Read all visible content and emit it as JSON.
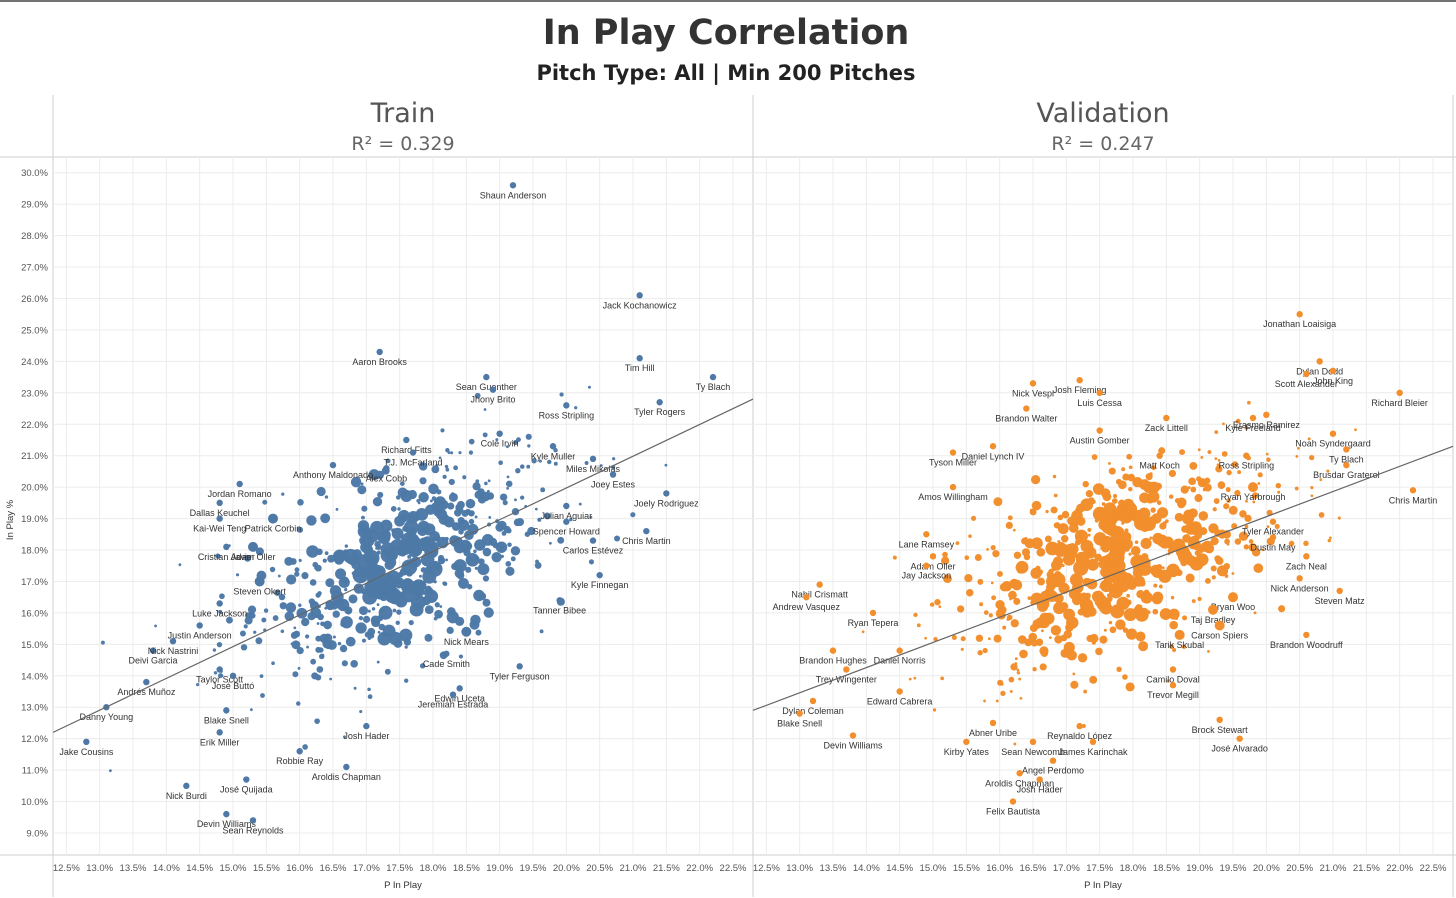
{
  "chart_data": {
    "type": "scatter",
    "title": "In Play Correlation",
    "subtitle": "Pitch Type: All | Min 200 Pitches",
    "xlabel": "P In Play",
    "ylabel": "In Play %",
    "xlim": [
      12.3,
      22.8
    ],
    "ylim": [
      8.3,
      30.5
    ],
    "x_ticks": [
      "12.5%",
      "13.0%",
      "13.5%",
      "14.0%",
      "14.5%",
      "15.0%",
      "15.5%",
      "16.0%",
      "16.5%",
      "17.0%",
      "17.5%",
      "18.0%",
      "18.5%",
      "19.0%",
      "19.5%",
      "20.0%",
      "20.5%",
      "21.0%",
      "21.5%",
      "22.0%",
      "22.5%"
    ],
    "y_ticks": [
      "9.0%",
      "10.0%",
      "11.0%",
      "12.0%",
      "13.0%",
      "14.0%",
      "15.0%",
      "16.0%",
      "17.0%",
      "18.0%",
      "19.0%",
      "20.0%",
      "21.0%",
      "22.0%",
      "23.0%",
      "24.0%",
      "25.0%",
      "26.0%",
      "27.0%",
      "28.0%",
      "29.0%",
      "30.0%"
    ],
    "grid": true,
    "panels": [
      {
        "name": "Train",
        "r2_label": "R² = 0.329",
        "color": "#4e79a7",
        "trend": {
          "x": [
            12.3,
            22.8
          ],
          "y": [
            12.2,
            22.8
          ]
        },
        "labeled_points": [
          {
            "x": 19.2,
            "y": 29.6,
            "label": "Shaun Anderson"
          },
          {
            "x": 21.1,
            "y": 26.1,
            "label": "Jack Kochanowicz"
          },
          {
            "x": 21.1,
            "y": 24.1,
            "label": "Tim Hill"
          },
          {
            "x": 22.2,
            "y": 23.5,
            "label": "Ty Blach"
          },
          {
            "x": 17.2,
            "y": 24.3,
            "label": "Aaron Brooks"
          },
          {
            "x": 18.8,
            "y": 23.5,
            "label": "Sean Guenther"
          },
          {
            "x": 18.9,
            "y": 23.1,
            "label": "Jhony Brito"
          },
          {
            "x": 20.0,
            "y": 22.6,
            "label": "Ross Stripling"
          },
          {
            "x": 21.4,
            "y": 22.7,
            "label": "Tyler Rogers"
          },
          {
            "x": 17.6,
            "y": 21.5,
            "label": "Richard Fitts"
          },
          {
            "x": 17.7,
            "y": 21.1,
            "label": "T.J. McFarland"
          },
          {
            "x": 19.0,
            "y": 21.7,
            "label": "Cole Irvin"
          },
          {
            "x": 19.8,
            "y": 21.3,
            "label": "Kyle Muller"
          },
          {
            "x": 20.4,
            "y": 20.9,
            "label": "Miles Mikolas"
          },
          {
            "x": 16.5,
            "y": 20.7,
            "label": "Anthony Maldonado"
          },
          {
            "x": 17.3,
            "y": 20.6,
            "label": "Alex Cobb"
          },
          {
            "x": 15.1,
            "y": 20.1,
            "label": "Jordan Romano"
          },
          {
            "x": 20.7,
            "y": 20.4,
            "label": "Joey Estes"
          },
          {
            "x": 21.5,
            "y": 19.8,
            "label": "Joely Rodriguez"
          },
          {
            "x": 14.8,
            "y": 19.5,
            "label": "Dallas Keuchel"
          },
          {
            "x": 20.0,
            "y": 19.4,
            "label": "Julian Aguiar"
          },
          {
            "x": 14.8,
            "y": 19.0,
            "label": "Kai-Wei Teng"
          },
          {
            "x": 15.6,
            "y": 19.0,
            "label": "Patrick Corbin"
          },
          {
            "x": 20.0,
            "y": 18.9,
            "label": "Spencer Howard"
          },
          {
            "x": 21.2,
            "y": 18.6,
            "label": "Chris Martin"
          },
          {
            "x": 14.9,
            "y": 18.1,
            "label": "Cristian Javier"
          },
          {
            "x": 15.3,
            "y": 18.1,
            "label": "Adam Oller"
          },
          {
            "x": 20.4,
            "y": 18.3,
            "label": "Carlos Estévez"
          },
          {
            "x": 20.5,
            "y": 17.2,
            "label": "Kyle Finnegan"
          },
          {
            "x": 15.4,
            "y": 17.0,
            "label": "Steven Okert"
          },
          {
            "x": 14.8,
            "y": 16.3,
            "label": "Luke Jackson"
          },
          {
            "x": 19.9,
            "y": 16.4,
            "label": "Tanner Bibee"
          },
          {
            "x": 14.5,
            "y": 15.6,
            "label": "Justin Anderson"
          },
          {
            "x": 18.5,
            "y": 15.4,
            "label": "Nick Mears"
          },
          {
            "x": 13.8,
            "y": 14.8,
            "label": "Deivi Garcia"
          },
          {
            "x": 14.1,
            "y": 15.1,
            "label": "Nick Nastrini"
          },
          {
            "x": 18.2,
            "y": 14.7,
            "label": "Cade Smith"
          },
          {
            "x": 14.8,
            "y": 14.2,
            "label": "Taylor Scott"
          },
          {
            "x": 19.3,
            "y": 14.3,
            "label": "Tyler Ferguson"
          },
          {
            "x": 15.0,
            "y": 14.0,
            "label": "José Buttó"
          },
          {
            "x": 13.7,
            "y": 13.8,
            "label": "Andrés Muñoz"
          },
          {
            "x": 18.4,
            "y": 13.6,
            "label": "Edwin Uceta"
          },
          {
            "x": 18.3,
            "y": 13.4,
            "label": "Jeremiah Estrada"
          },
          {
            "x": 14.9,
            "y": 12.9,
            "label": "Blake Snell"
          },
          {
            "x": 13.1,
            "y": 13.0,
            "label": "Danny Young"
          },
          {
            "x": 14.8,
            "y": 12.2,
            "label": "Erik Miller"
          },
          {
            "x": 17.0,
            "y": 12.4,
            "label": "Josh Hader"
          },
          {
            "x": 16.0,
            "y": 11.6,
            "label": "Robbie Ray"
          },
          {
            "x": 16.7,
            "y": 11.1,
            "label": "Aroldis Chapman"
          },
          {
            "x": 12.8,
            "y": 11.9,
            "label": "Jake Cousins"
          },
          {
            "x": 14.3,
            "y": 10.5,
            "label": "Nick Burdi"
          },
          {
            "x": 15.2,
            "y": 10.7,
            "label": "José Quijada"
          },
          {
            "x": 14.9,
            "y": 9.6,
            "label": "Devin Williams"
          },
          {
            "x": 15.3,
            "y": 9.4,
            "label": "Sean Reynolds"
          }
        ]
      },
      {
        "name": "Validation",
        "r2_label": "R² = 0.247",
        "color": "#f28e2b",
        "trend": {
          "x": [
            12.3,
            22.8
          ],
          "y": [
            12.9,
            21.3
          ]
        },
        "labeled_points": [
          {
            "x": 20.5,
            "y": 25.5,
            "label": "Jonathan Loaisiga"
          },
          {
            "x": 20.8,
            "y": 24.0,
            "label": "Dylan Dodd"
          },
          {
            "x": 21.0,
            "y": 23.7,
            "label": "John King"
          },
          {
            "x": 20.6,
            "y": 23.6,
            "label": "Scott Alexander"
          },
          {
            "x": 22.0,
            "y": 23.0,
            "label": "Richard Bleier"
          },
          {
            "x": 17.2,
            "y": 23.4,
            "label": "Josh Fleming"
          },
          {
            "x": 16.5,
            "y": 23.3,
            "label": "Nick Vespi"
          },
          {
            "x": 17.5,
            "y": 23.0,
            "label": "Luis Cessa"
          },
          {
            "x": 19.8,
            "y": 22.2,
            "label": "Kyle Freeland"
          },
          {
            "x": 20.0,
            "y": 22.3,
            "label": "Erasmo Ramirez"
          },
          {
            "x": 16.4,
            "y": 22.5,
            "label": "Brandon Walter"
          },
          {
            "x": 18.5,
            "y": 22.2,
            "label": "Zack Littell"
          },
          {
            "x": 17.5,
            "y": 21.8,
            "label": "Austin Gomber"
          },
          {
            "x": 21.0,
            "y": 21.7,
            "label": "Noah Syndergaard"
          },
          {
            "x": 15.9,
            "y": 21.3,
            "label": "Daniel Lynch IV"
          },
          {
            "x": 18.4,
            "y": 21.0,
            "label": "Matt Koch"
          },
          {
            "x": 15.3,
            "y": 21.1,
            "label": "Tyson Miller"
          },
          {
            "x": 21.2,
            "y": 21.2,
            "label": "Ty Blach"
          },
          {
            "x": 21.2,
            "y": 20.7,
            "label": "Brusdar Graterol"
          },
          {
            "x": 19.7,
            "y": 21.0,
            "label": "Ross Stripling"
          },
          {
            "x": 19.8,
            "y": 20.0,
            "label": "Ryan Yarbrough"
          },
          {
            "x": 15.3,
            "y": 20.0,
            "label": "Amos Willingham"
          },
          {
            "x": 22.2,
            "y": 19.9,
            "label": "Chris Martin"
          },
          {
            "x": 14.9,
            "y": 18.5,
            "label": "Lane Ramsey"
          },
          {
            "x": 20.1,
            "y": 18.9,
            "label": "Tyler Alexander"
          },
          {
            "x": 20.1,
            "y": 18.4,
            "label": "Dustin May"
          },
          {
            "x": 15.0,
            "y": 17.8,
            "label": "Adam Oller"
          },
          {
            "x": 14.9,
            "y": 17.5,
            "label": "Jay Jackson"
          },
          {
            "x": 20.6,
            "y": 17.8,
            "label": "Zach Neal"
          },
          {
            "x": 13.3,
            "y": 16.9,
            "label": "Nabil Crismatt"
          },
          {
            "x": 20.5,
            "y": 17.1,
            "label": "Nick Anderson"
          },
          {
            "x": 13.1,
            "y": 16.5,
            "label": "Andrew Vasquez"
          },
          {
            "x": 19.5,
            "y": 16.5,
            "label": "Bryan Woo"
          },
          {
            "x": 21.1,
            "y": 16.7,
            "label": "Steven Matz"
          },
          {
            "x": 14.1,
            "y": 16.0,
            "label": "Ryan Tepera"
          },
          {
            "x": 19.2,
            "y": 16.1,
            "label": "Taj Bradley"
          },
          {
            "x": 19.3,
            "y": 15.6,
            "label": "Carson Spiers"
          },
          {
            "x": 18.7,
            "y": 15.3,
            "label": "Tarik Skubal"
          },
          {
            "x": 20.6,
            "y": 15.3,
            "label": "Brandon Woodruff"
          },
          {
            "x": 13.5,
            "y": 14.8,
            "label": "Brandon Hughes"
          },
          {
            "x": 14.5,
            "y": 14.8,
            "label": "Daniel Norris"
          },
          {
            "x": 13.7,
            "y": 14.2,
            "label": "Trey Wingenter"
          },
          {
            "x": 18.6,
            "y": 14.2,
            "label": "Camilo Doval"
          },
          {
            "x": 18.6,
            "y": 13.7,
            "label": "Trevor Megill"
          },
          {
            "x": 14.5,
            "y": 13.5,
            "label": "Edward Cabrera"
          },
          {
            "x": 13.2,
            "y": 13.2,
            "label": "Dylan Coleman"
          },
          {
            "x": 13.0,
            "y": 12.8,
            "label": "Blake Snell"
          },
          {
            "x": 17.2,
            "y": 12.4,
            "label": "Reynaldo López"
          },
          {
            "x": 15.9,
            "y": 12.5,
            "label": "Abner Uribe"
          },
          {
            "x": 19.3,
            "y": 12.6,
            "label": "Brock Stewart"
          },
          {
            "x": 13.8,
            "y": 12.1,
            "label": "Devin Williams"
          },
          {
            "x": 15.5,
            "y": 11.9,
            "label": "Kirby Yates"
          },
          {
            "x": 16.5,
            "y": 11.9,
            "label": "Sean Newcomb"
          },
          {
            "x": 17.4,
            "y": 11.9,
            "label": "James Karinchak"
          },
          {
            "x": 19.6,
            "y": 12.0,
            "label": "José Alvarado"
          },
          {
            "x": 16.8,
            "y": 11.3,
            "label": "Angel Perdomo"
          },
          {
            "x": 16.3,
            "y": 10.9,
            "label": "Aroldis Chapman"
          },
          {
            "x": 16.6,
            "y": 10.7,
            "label": "Josh Hader"
          },
          {
            "x": 16.2,
            "y": 10.0,
            "label": "Felix Bautista"
          }
        ]
      }
    ]
  }
}
